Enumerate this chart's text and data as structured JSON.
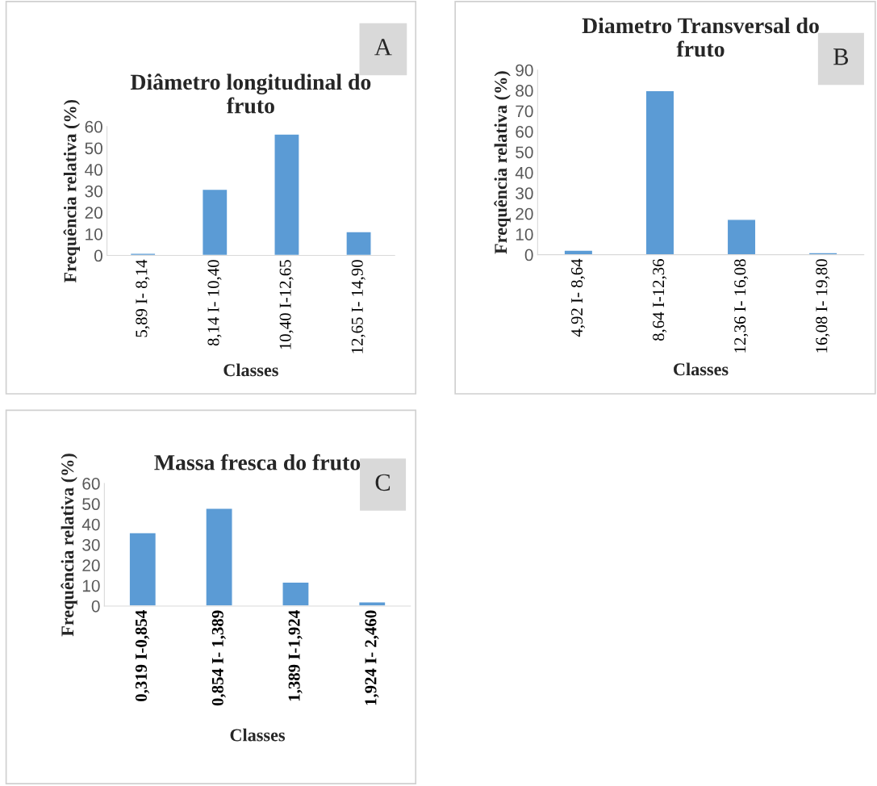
{
  "chart_data": [
    {
      "type": "bar",
      "title": "Diâmetro longitudinal do\nfruto",
      "xlabel": "Classes",
      "ylabel": "Frequência relativa (%)",
      "categories": [
        "5,89 I- 8,14",
        "8,14 I- 10,40",
        "10,40 I-12,65",
        "12,65 I- 14,90"
      ],
      "values": [
        1.0,
        30.8,
        56.5,
        11.1
      ],
      "color": "#5b9bd5",
      "ylim": [
        0,
        60
      ],
      "yticks": [
        0,
        10,
        20,
        30,
        40,
        50,
        60
      ],
      "grid": false,
      "annotations": [
        "A"
      ]
    },
    {
      "type": "bar",
      "title": "Diametro Transversal do\nfruto",
      "xlabel": "Classes",
      "ylabel": "Frequência relativa (%)",
      "categories": [
        "4,92 I- 8,64",
        "8,64 I-12,36",
        "12,36 I- 16,08",
        "16,08 I- 19,80"
      ],
      "values": [
        2.2,
        79.9,
        17.2,
        1.0
      ],
      "color": "#5b9bd5",
      "ylim": [
        0,
        90
      ],
      "yticks": [
        0,
        10,
        20,
        30,
        40,
        50,
        60,
        70,
        80,
        90
      ],
      "grid": false,
      "annotations": [
        "B"
      ]
    },
    {
      "type": "bar",
      "title": "Massa fresca do fruto",
      "xlabel": "Classes",
      "ylabel": "Frequência relativa (%)",
      "categories": [
        "0,319 I-0,854",
        "0,854 I- 1,389",
        "1,389 I-1,924",
        "1,924 I- 2,460"
      ],
      "values": [
        35.9,
        47.8,
        11.7,
        2.0
      ],
      "color": "#5b9bd5",
      "ylim": [
        0,
        60
      ],
      "yticks": [
        0,
        10,
        20,
        30,
        40,
        50,
        60
      ],
      "grid": false,
      "annotations": [
        "C"
      ]
    }
  ]
}
